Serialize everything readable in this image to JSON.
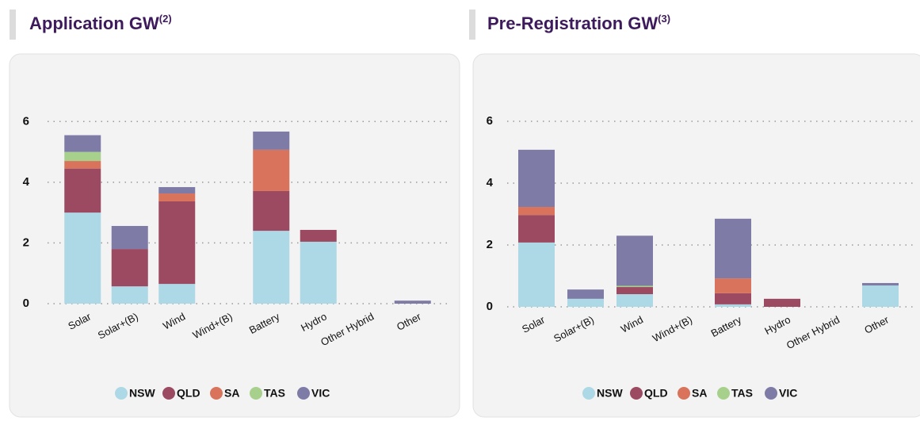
{
  "chart_data": [
    {
      "type": "bar",
      "stacked": true,
      "title": "Application GW",
      "title_note": "(2)",
      "categories": [
        "Solar",
        "Solar+(B)",
        "Wind",
        "Wind+(B)",
        "Battery",
        "Hydro",
        "Other Hybrid",
        "Other"
      ],
      "series": [
        {
          "name": "NSW",
          "color": "#add8e6",
          "values": [
            3.0,
            0.57,
            0.65,
            0,
            2.4,
            2.04,
            0,
            0
          ]
        },
        {
          "name": "QLD",
          "color": "#9b4a62",
          "values": [
            1.45,
            1.23,
            2.72,
            0,
            1.31,
            0.39,
            0,
            0
          ]
        },
        {
          "name": "SA",
          "color": "#d9735b",
          "values": [
            0.25,
            0,
            0.26,
            0,
            1.36,
            0,
            0,
            0
          ]
        },
        {
          "name": "TAS",
          "color": "#a8d08d",
          "values": [
            0.3,
            0,
            0,
            0,
            0,
            0,
            0,
            0
          ]
        },
        {
          "name": "VIC",
          "color": "#7e7ba6",
          "values": [
            0.55,
            0.76,
            0.21,
            0,
            0.6,
            0,
            0,
            0.1
          ]
        }
      ],
      "ylim": [
        0,
        7
      ],
      "yticks": [
        0,
        2,
        4,
        6
      ],
      "grid": true,
      "legend": "bottom"
    },
    {
      "type": "bar",
      "stacked": true,
      "title": "Pre-Registration GW",
      "title_note": "(3)",
      "categories": [
        "Solar",
        "Solar+(B)",
        "Wind",
        "Wind+(B)",
        "Battery",
        "Hydro",
        "Other Hybrid",
        "Other"
      ],
      "series": [
        {
          "name": "NSW",
          "color": "#add8e6",
          "values": [
            2.08,
            0.26,
            0.41,
            0,
            0.08,
            0,
            0,
            0.69
          ]
        },
        {
          "name": "QLD",
          "color": "#9b4a62",
          "values": [
            0.89,
            0,
            0.23,
            0,
            0.36,
            0.26,
            0,
            0
          ]
        },
        {
          "name": "SA",
          "color": "#d9735b",
          "values": [
            0.26,
            0,
            0,
            0,
            0.48,
            0,
            0,
            0
          ]
        },
        {
          "name": "TAS",
          "color": "#a8d08d",
          "values": [
            0,
            0,
            0.04,
            0,
            0,
            0,
            0,
            0
          ]
        },
        {
          "name": "VIC",
          "color": "#7e7ba6",
          "values": [
            1.85,
            0.3,
            1.62,
            0,
            1.93,
            0,
            0,
            0.08
          ]
        }
      ],
      "ylim": [
        0,
        7
      ],
      "yticks": [
        0,
        2,
        4,
        6
      ],
      "grid": true,
      "legend": "bottom"
    }
  ]
}
